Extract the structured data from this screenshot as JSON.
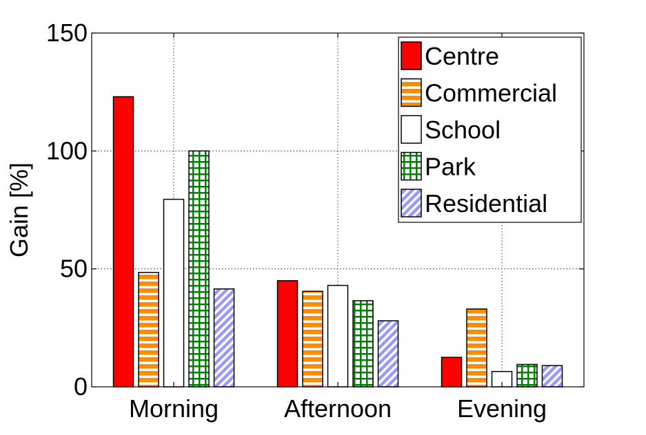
{
  "chart_data": {
    "type": "bar",
    "title": "",
    "xlabel": "",
    "ylabel": "Gain [%]",
    "ylim": [
      0,
      150
    ],
    "yticks": [
      0,
      50,
      100,
      150
    ],
    "grid": true,
    "legend_position": "top-right",
    "categories": [
      "Morning",
      "Afternoon",
      "Evening"
    ],
    "series": [
      {
        "name": "Centre",
        "values": [
          123,
          45,
          12.5
        ],
        "color": "#ff0000",
        "pattern": "solid"
      },
      {
        "name": "Commercial",
        "values": [
          48.5,
          40.5,
          33
        ],
        "color": "#ff8c00",
        "pattern": "horizontal-stripes"
      },
      {
        "name": "School",
        "values": [
          79.5,
          43,
          6.5
        ],
        "color": "#ffffff",
        "pattern": "solid"
      },
      {
        "name": "Park",
        "values": [
          100,
          36.5,
          9.5
        ],
        "color": "#008000",
        "pattern": "grid"
      },
      {
        "name": "Residential",
        "values": [
          41.5,
          28,
          9
        ],
        "color": "#9999ff",
        "pattern": "diagonal-stripes"
      }
    ]
  }
}
